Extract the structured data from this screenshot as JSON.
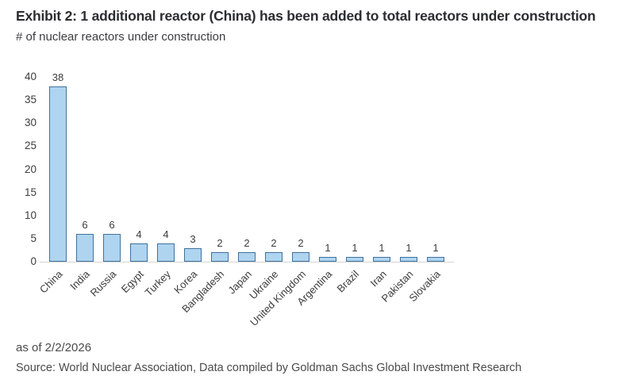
{
  "header": {
    "title": "Exhibit 2: 1 additional reactor (China) has been added to total reactors under construction",
    "subtitle": "# of nuclear reactors under construction"
  },
  "chart_data": {
    "type": "bar",
    "categories": [
      "China",
      "India",
      "Russia",
      "Egypt",
      "Turkey",
      "Korea",
      "Bangladesh",
      "Japan",
      "Ukraine",
      "United Kingdom",
      "Argentina",
      "Brazil",
      "Iran",
      "Pakistan",
      "Slovakia"
    ],
    "values": [
      38,
      6,
      6,
      4,
      4,
      3,
      2,
      2,
      2,
      2,
      1,
      1,
      1,
      1,
      1
    ],
    "title": "Exhibit 2: 1 additional reactor (China) has been added to total reactors under construction",
    "xlabel": "",
    "ylabel": "# of nuclear reactors under construction",
    "ylim": [
      0,
      40
    ],
    "y_ticks": [
      0,
      5,
      10,
      15,
      20,
      25,
      30,
      35,
      40
    ],
    "grid": false,
    "legend": "none",
    "data_labels": true,
    "bar_fill_color": "#AED4F0",
    "bar_border_color": "#41719C",
    "axis_line_color": "#d4d4d4"
  },
  "footer": {
    "as_of": "as of 2/2/2026",
    "source": "Source: World Nuclear Association, Data compiled by Goldman Sachs Global Investment Research"
  }
}
